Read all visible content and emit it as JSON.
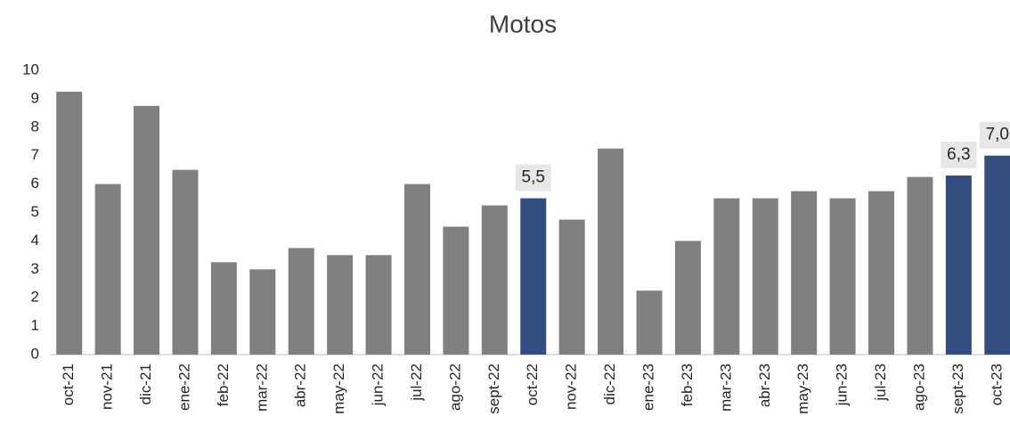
{
  "chart_data": {
    "type": "bar",
    "title": "Motos",
    "categories": [
      "oct-21",
      "nov-21",
      "dic-21",
      "ene-22",
      "feb-22",
      "mar-22",
      "abr-22",
      "may-22",
      "jun-22",
      "jul-22",
      "ago-22",
      "sept-22",
      "oct-22",
      "nov-22",
      "dic-22",
      "ene-23",
      "feb-23",
      "mar-23",
      "abr-23",
      "may-23",
      "jun-23",
      "jul-23",
      "ago-23",
      "sept-23",
      "oct-23"
    ],
    "values": [
      9.25,
      6.0,
      8.75,
      6.5,
      3.25,
      3.0,
      3.75,
      3.5,
      3.5,
      6.0,
      4.5,
      5.25,
      5.5,
      4.75,
      7.25,
      2.25,
      4.0,
      5.5,
      5.5,
      5.75,
      5.5,
      5.75,
      6.25,
      6.3,
      7.0
    ],
    "value_labels": [
      null,
      null,
      null,
      null,
      null,
      null,
      null,
      null,
      null,
      null,
      null,
      null,
      "5,5",
      null,
      null,
      null,
      null,
      null,
      null,
      null,
      null,
      null,
      null,
      "6,3",
      "7,0"
    ],
    "colors": [
      "#808080",
      "#808080",
      "#808080",
      "#808080",
      "#808080",
      "#808080",
      "#808080",
      "#808080",
      "#808080",
      "#808080",
      "#808080",
      "#808080",
      "#334d80",
      "#808080",
      "#808080",
      "#808080",
      "#808080",
      "#808080",
      "#808080",
      "#808080",
      "#808080",
      "#808080",
      "#808080",
      "#334d80",
      "#334d80"
    ],
    "ylim": [
      0,
      10
    ],
    "yticks": [
      0,
      1,
      2,
      3,
      4,
      5,
      6,
      7,
      8,
      9,
      10
    ],
    "grid": false
  }
}
